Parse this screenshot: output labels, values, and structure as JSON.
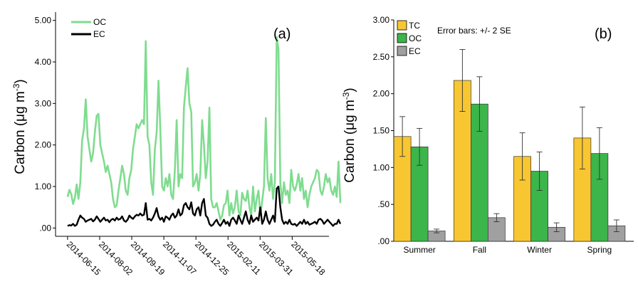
{
  "chart_data": [
    {
      "type": "line",
      "panel_label": "(a)",
      "ylabel": "Carbon (μg m",
      "ylabel_sup": "-3",
      "ylabel_end": ")",
      "ylim": [
        -0.2,
        5.2
      ],
      "yticks": [
        0,
        1,
        2,
        3,
        4,
        5
      ],
      "ytick_labels": [
        ".00",
        "1.00",
        "2.00",
        "3.00",
        "4.00",
        "5.00"
      ],
      "xlim": [
        0,
        409
      ],
      "xtick_positions": [
        18,
        66,
        114,
        162,
        210,
        258,
        306,
        354
      ],
      "xtick_labels": [
        "2014-06-15",
        "2014-08-02",
        "2014-09-19",
        "2014-11-07",
        "2014-12-25",
        "2015-02-11",
        "2015-03-31",
        "2015-05-18"
      ],
      "legend_position": "top-left",
      "colors": {
        "OC": "#7fdc8f",
        "EC": "#000000"
      },
      "series": [
        {
          "name": "OC",
          "values": [
            0.75,
            0.92,
            0.82,
            0.58,
            0.72,
            1.05,
            0.7,
            1.1,
            2.1,
            2.4,
            3.1,
            2.2,
            1.9,
            1.6,
            1.8,
            2.3,
            2.7,
            2.75,
            2.0,
            1.8,
            1.6,
            1.35,
            1.5,
            1.3,
            1.1,
            0.7,
            0.5,
            0.55,
            0.9,
            1.2,
            1.5,
            1.3,
            0.9,
            0.8,
            1.2,
            1.4,
            1.9,
            2.2,
            2.5,
            2.4,
            2.5,
            2.6,
            2.5,
            4.5,
            2.2,
            2.0,
            1.1,
            0.8,
            1.9,
            2.3,
            3.55,
            2.4,
            1.0,
            0.9,
            1.2,
            1.0,
            1.3,
            0.8,
            0.7,
            1.4,
            2.6,
            1.0,
            1.3,
            1.2,
            2.9,
            3.4,
            3.85,
            3.0,
            2.8,
            1.0,
            1.1,
            1.3,
            0.9,
            1.3,
            2.6,
            2.0,
            1.2,
            1.6,
            2.9,
            0.7,
            0.5,
            0.5,
            0.6,
            0.4,
            0.2,
            0.3,
            0.55,
            0.6,
            0.9,
            0.3,
            0.6,
            0.35,
            0.5,
            0.9,
            0.4,
            0.3,
            0.85,
            0.7,
            0.65,
            0.9,
            0.5,
            0.3,
            1.0,
            0.4,
            0.7,
            0.9,
            0.3,
            0.65,
            1.0,
            2.65,
            1.2,
            0.9,
            1.3,
            0.7,
            1.1,
            4.6,
            4.3,
            1.1,
            0.6,
            1.1,
            0.8,
            0.9,
            0.6,
            1.4,
            1.0,
            0.9,
            1.05,
            1.3,
            0.9,
            1.2,
            0.7,
            0.9,
            0.5,
            0.8,
            1.0,
            1.1,
            1.2,
            1.4,
            1.35,
            0.9,
            0.8,
            1.0,
            1.3,
            1.1,
            1.2,
            0.9,
            0.8,
            1.0,
            0.75,
            1.6,
            0.6
          ],
          "start": 18,
          "step": 2.72
        },
        {
          "name": "EC",
          "values": [
            0.05,
            0.07,
            0.06,
            0.1,
            0.05,
            0.08,
            0.2,
            0.3,
            0.25,
            0.22,
            0.15,
            0.18,
            0.2,
            0.22,
            0.16,
            0.2,
            0.28,
            0.22,
            0.15,
            0.2,
            0.25,
            0.18,
            0.2,
            0.14,
            0.2,
            0.22,
            0.18,
            0.25,
            0.2,
            0.22,
            0.28,
            0.18,
            0.15,
            0.2,
            0.3,
            0.25,
            0.22,
            0.28,
            0.32,
            0.3,
            0.35,
            0.3,
            0.32,
            0.6,
            0.2,
            0.22,
            0.18,
            0.25,
            0.35,
            0.48,
            0.28,
            0.2,
            0.25,
            0.15,
            0.28,
            0.25,
            0.2,
            0.3,
            0.35,
            0.25,
            0.3,
            0.45,
            0.3,
            0.35,
            0.55,
            0.6,
            0.5,
            0.45,
            0.62,
            0.35,
            0.3,
            0.45,
            0.5,
            0.3,
            0.6,
            0.7,
            0.3,
            0.25,
            0.1,
            0.05,
            0.08,
            0.15,
            0.2,
            0.1,
            0.05,
            0.12,
            0.2,
            0.1,
            0.15,
            0.05,
            0.2,
            0.25,
            0.18,
            0.1,
            0.3,
            0.2,
            0.1,
            0.25,
            0.4,
            0.2,
            0.1,
            0.3,
            0.15,
            0.2,
            0.25,
            0.18,
            0.5,
            0.1,
            0.2,
            0.4,
            0.2,
            0.1,
            0.2,
            0.3,
            0.15,
            0.95,
            1.0,
            0.5,
            0.2,
            0.1,
            0.15,
            0.1,
            0.2,
            0.1,
            0.08,
            0.1,
            0.05,
            0.1,
            0.15,
            0.1,
            0.2,
            0.1,
            0.15,
            0.08,
            0.1,
            0.12,
            0.15,
            0.1,
            0.2,
            0.22,
            0.18,
            0.1,
            0.15,
            0.2,
            0.15,
            0.1,
            0.05,
            0.1,
            0.1,
            0.2,
            0.1
          ],
          "start": 18,
          "step": 2.72
        }
      ]
    },
    {
      "type": "bar",
      "panel_label": "(b)",
      "annotation": "Error bars: +/- 2 SE",
      "ylabel": "Carbon (μg m",
      "ylabel_sup": "-3",
      "ylabel_end": ")",
      "ylim": [
        0,
        3.0
      ],
      "yticks": [
        0,
        0.5,
        1.0,
        1.5,
        2.0,
        2.5,
        3.0
      ],
      "ytick_labels": [
        ".00",
        ".50",
        "1.00",
        "1.50",
        "2.00",
        "2.50",
        "3.00"
      ],
      "categories": [
        "Summer",
        "Fall",
        "Winter",
        "Spring"
      ],
      "legend_position": "top-left",
      "colors": {
        "TC": "#f8c630",
        "OC": "#3cb54a",
        "EC": "#a0a0a0"
      },
      "series": [
        {
          "name": "TC",
          "values": [
            1.42,
            2.18,
            1.15,
            1.4
          ],
          "err": [
            0.27,
            0.42,
            0.32,
            0.42
          ]
        },
        {
          "name": "OC",
          "values": [
            1.28,
            1.86,
            0.95,
            1.19
          ],
          "err": [
            0.25,
            0.37,
            0.26,
            0.35
          ]
        },
        {
          "name": "EC",
          "values": [
            0.14,
            0.32,
            0.19,
            0.21
          ],
          "err": [
            0.025,
            0.055,
            0.06,
            0.08
          ]
        }
      ]
    }
  ]
}
